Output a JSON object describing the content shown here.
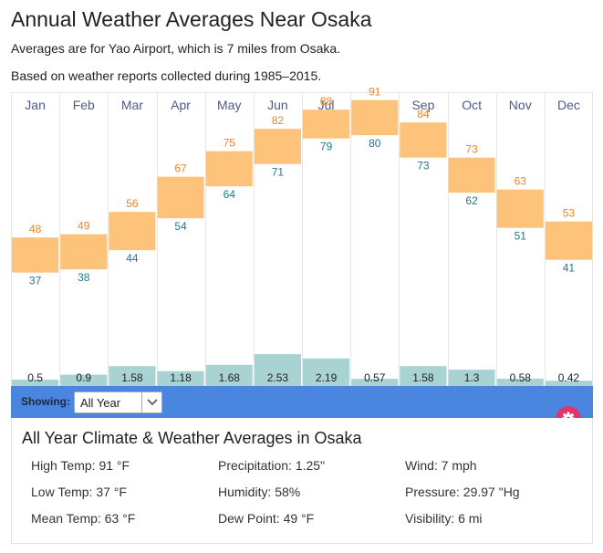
{
  "page": {
    "title": "Annual Weather Averages Near Osaka",
    "subtitle1": "Averages are for Yao Airport, which is 7 miles from Osaka.",
    "subtitle2": "Based on weather reports collected during 1985–2015."
  },
  "colors": {
    "temp_bar": "#fec37b",
    "high_label": "#e8862a",
    "low_label": "#1c7a8c",
    "precip_bar": "#a9d3d2",
    "gridline": "#e6e6e6",
    "month_label": "#4d5a8a",
    "showing_bar": "#4a86df",
    "gear_button": "#e2336b"
  },
  "chart_data": {
    "type": "bar",
    "categories": [
      "Jan",
      "Feb",
      "Mar",
      "Apr",
      "May",
      "Jun",
      "Jul",
      "Aug",
      "Sep",
      "Oct",
      "Nov",
      "Dec"
    ],
    "series": [
      {
        "name": "",
        "kind": "temperature_high_f",
        "values": [
          48,
          49,
          56,
          67,
          75,
          82,
          88,
          91,
          84,
          73,
          63,
          53
        ]
      },
      {
        "name": "",
        "kind": "temperature_low_f",
        "values": [
          37,
          38,
          44,
          54,
          64,
          71,
          79,
          80,
          73,
          62,
          51,
          41
        ]
      },
      {
        "name": "",
        "kind": "precipitation_in",
        "values": [
          0.5,
          0.9,
          1.58,
          1.18,
          1.68,
          2.53,
          2.19,
          0.57,
          1.58,
          1.3,
          0.58,
          0.42
        ]
      }
    ],
    "precip_labels": [
      "0.5",
      "0.9",
      "1.58",
      "1.18",
      "1.68",
      "2.53",
      "2.19",
      "0.57",
      "1.58",
      "1.3",
      "0.58",
      "0.42"
    ],
    "temp_range": [
      37,
      91
    ],
    "precip_range": [
      0,
      2.53
    ],
    "grid": true
  },
  "filter": {
    "label": "Showing:",
    "selected": "All Year",
    "gear_icon": "gear-icon",
    "arrow_icon": "chevron-down-icon"
  },
  "summary": {
    "title": "All Year Climate & Weather Averages in Osaka",
    "high_temp": "High Temp: 91 °F",
    "low_temp": "Low Temp: 37 °F",
    "mean_temp": "Mean Temp: 63 °F",
    "precipitation": "Precipitation: 1.25\"",
    "humidity": "Humidity: 58%",
    "dew_point": "Dew Point: 49 °F",
    "wind": "Wind: 7 mph",
    "pressure": "Pressure: 29.97 \"Hg",
    "visibility": "Visibility: 6 mi"
  }
}
